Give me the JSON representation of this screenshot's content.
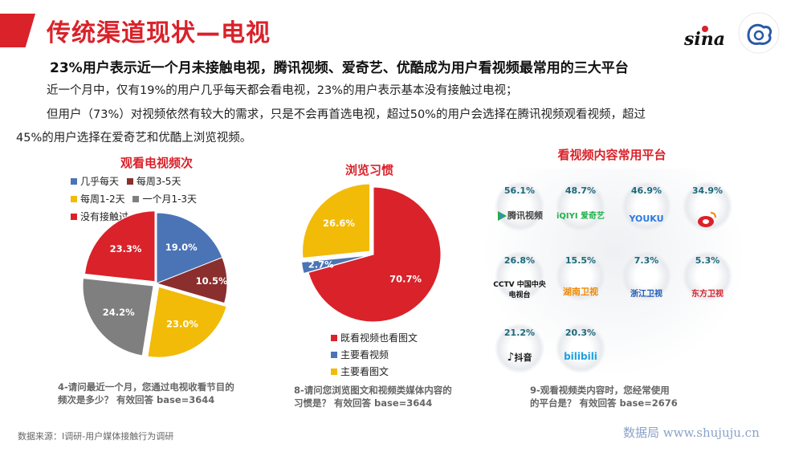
{
  "header": {
    "title": "传统渠道现状—电视",
    "sina_logo_text": "sina",
    "brand_red": "#d9222a"
  },
  "subtitle": "23%用户表示近一个月未接触电视，腾讯视频、爱奇艺、优酷成为用户看视频最常用的三大平台",
  "paragraphs": [
    "近一个月中，仅有19%的用户几乎每天都会看电视，23%的用户表示基本没有接触过电视；",
    "但用户（73%）对视频依然有较大的需求，只是不会再首选电视，超过50%的用户会选择在腾讯视频观看视频，超过",
    "45%的用户选择在爱奇艺和优酷上浏览视频。"
  ],
  "chart_data": [
    {
      "type": "pie",
      "title": "观看电视频次",
      "categories": [
        "几乎每天",
        "每周3-5天",
        "每周1-2天",
        "一个月1-3天",
        "没有接触过"
      ],
      "values": [
        19.0,
        10.5,
        23.0,
        24.2,
        23.3
      ],
      "labels": [
        "19.0%",
        "10.5%",
        "23.0%",
        "24.2%",
        "23.3%"
      ],
      "colors": [
        "#4a74b5",
        "#8b2e2e",
        "#f2bb08",
        "#7f7f7f",
        "#d9222a"
      ],
      "legend": "top",
      "note": [
        "4-请问最近一个月，您通过电视收看节目的",
        "频次是多少？  有效回答 base=3644"
      ]
    },
    {
      "type": "pie",
      "title": "浏览习惯",
      "categories": [
        "既看视频也看图文",
        "主要看视频",
        "主要看图文"
      ],
      "values": [
        70.7,
        2.7,
        26.6
      ],
      "labels": [
        "70.7%",
        "2.7%",
        "26.6%"
      ],
      "colors": [
        "#d9222a",
        "#4a74b5",
        "#f2bb08"
      ],
      "legend": "bottom",
      "note": [
        "8-请问您浏览图文和视频类媒体内容的",
        "习惯是？  有效回答 base=3644"
      ]
    },
    {
      "type": "table",
      "title": "看视频内容常用平台",
      "items": [
        {
          "name": "腾讯视频",
          "value": 56.1,
          "label": "56.1%",
          "logo": "腾讯视频"
        },
        {
          "name": "爱奇艺",
          "value": 48.7,
          "label": "48.7%",
          "logo": "iQIYI 爱奇艺"
        },
        {
          "name": "优酷",
          "value": 46.9,
          "label": "46.9%",
          "logo": "YOUKU"
        },
        {
          "name": "微博",
          "value": 34.9,
          "label": "34.9%",
          "logo": "weibo-icon"
        },
        {
          "name": "CCTV",
          "value": 26.8,
          "label": "26.8%",
          "logo": "CCTV 中国中央电视台"
        },
        {
          "name": "湖南卫视",
          "value": 15.5,
          "label": "15.5%",
          "logo": "湖南卫视"
        },
        {
          "name": "浙江卫视",
          "value": 7.3,
          "label": "7.3%",
          "logo": "浙江卫视"
        },
        {
          "name": "东方卫视",
          "value": 5.3,
          "label": "5.3%",
          "logo": "东方卫视"
        },
        {
          "name": "抖音",
          "value": 21.2,
          "label": "21.2%",
          "logo": "抖音"
        },
        {
          "name": "bilibili",
          "value": 20.3,
          "label": "20.3%",
          "logo": "bilibili"
        }
      ],
      "note": [
        "9-观看视频类内容时，您经常使用",
        "的平台是？  有效回答 base=2676"
      ]
    }
  ],
  "footer": {
    "source": "数据来源：I调研-用户媒体接触行为调研",
    "watermark": "数据局  www.shujuju.cn"
  }
}
